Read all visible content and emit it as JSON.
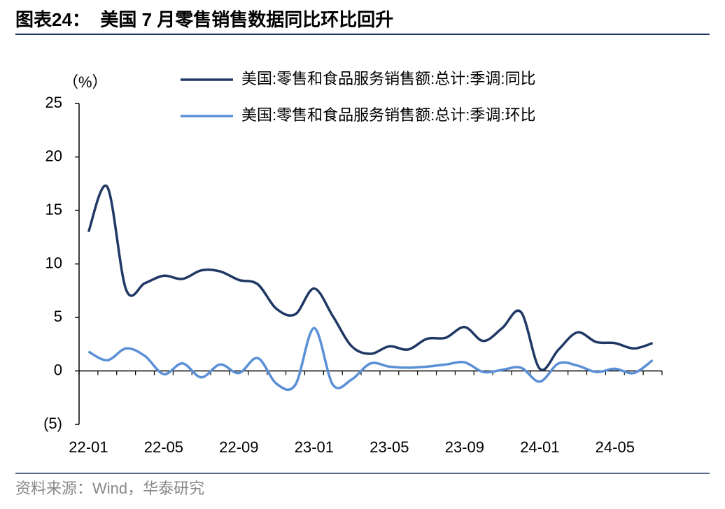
{
  "chart_data": {
    "type": "line",
    "title": "图表24：  美国 7 月零售销售数据同比环比回升",
    "y_label": "（%）",
    "source": "资料来源：Wind，华泰研究",
    "categories": [
      "22-01",
      null,
      null,
      null,
      "22-05",
      null,
      null,
      null,
      "22-09",
      null,
      null,
      null,
      "23-01",
      null,
      null,
      null,
      "23-05",
      null,
      null,
      null,
      "23-09",
      null,
      null,
      null,
      "24-01",
      null,
      null,
      null,
      "24-05",
      null,
      null
    ],
    "series": [
      {
        "name": "美国:零售和食品服务销售额:总计:季调:同比",
        "color": "#1f3864",
        "values": [
          13.0,
          17.2,
          7.6,
          8.2,
          8.9,
          8.6,
          9.4,
          9.3,
          8.5,
          8.1,
          5.8,
          5.3,
          7.7,
          5.1,
          2.3,
          1.6,
          2.3,
          2.0,
          3.0,
          3.1,
          4.1,
          2.8,
          4.0,
          5.5,
          0.2,
          2.0,
          3.6,
          2.7,
          2.6,
          2.1,
          2.6
        ]
      },
      {
        "name": "美国:零售和食品服务销售额:总计:季调:环比",
        "color": "#5b8fd6",
        "values": [
          1.8,
          1.0,
          2.1,
          1.4,
          -0.3,
          0.7,
          -0.6,
          0.6,
          -0.2,
          1.2,
          -1.2,
          -1.3,
          4.0,
          -1.3,
          -0.8,
          0.7,
          0.4,
          0.3,
          0.4,
          0.6,
          0.8,
          -0.1,
          0.1,
          0.3,
          -1.0,
          0.7,
          0.5,
          -0.1,
          0.2,
          -0.2,
          1.0
        ]
      }
    ],
    "ylim": [
      -5,
      25
    ],
    "yticks": [
      {
        "value": -5,
        "label": "(5)"
      },
      0,
      5,
      10,
      15,
      20,
      25
    ]
  }
}
